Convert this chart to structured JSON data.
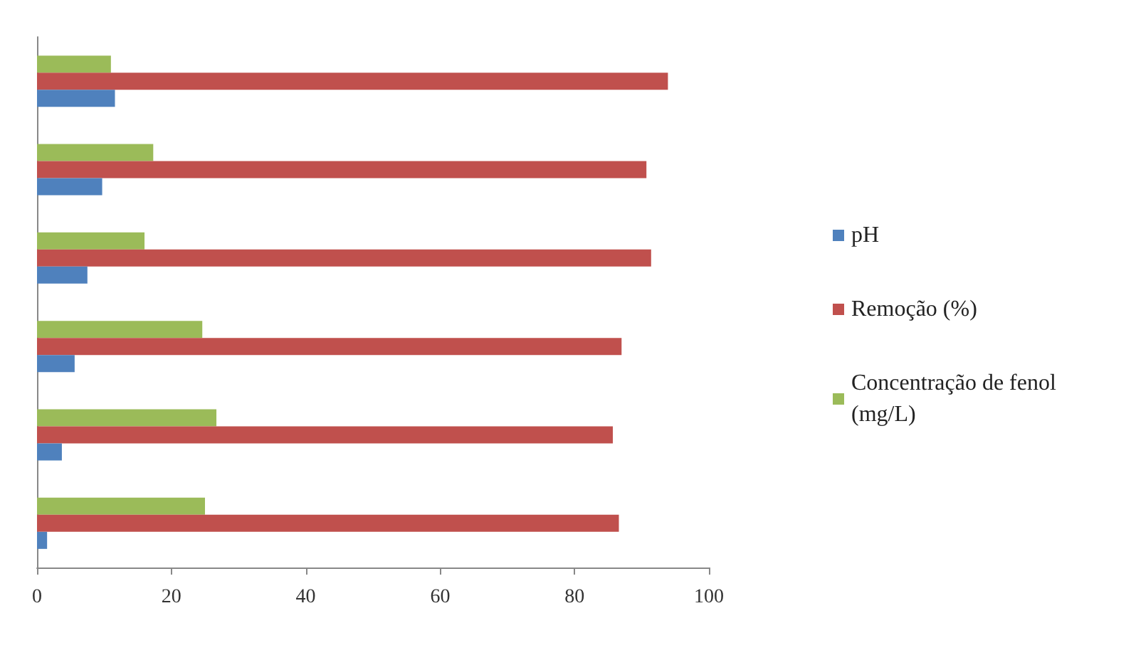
{
  "chart_data": {
    "type": "bar",
    "orientation": "horizontal",
    "categories": [
      null,
      null,
      null,
      null,
      null,
      null
    ],
    "series": [
      {
        "name": "Concentração de fenol (mg/L)",
        "color": "#9bbb59",
        "values": [
          11.0,
          17.3,
          16.0,
          24.6,
          26.7,
          25.0
        ]
      },
      {
        "name": "Remoção (%)",
        "color": "#c0504d",
        "values": [
          93.9,
          90.7,
          91.4,
          87.0,
          85.7,
          86.6
        ]
      },
      {
        "name": "pH",
        "color": "#4f81bd",
        "values": [
          11.6,
          9.7,
          7.5,
          5.6,
          3.7,
          1.5
        ]
      }
    ],
    "xlim": [
      0,
      100
    ],
    "xticks": [
      0,
      20,
      40,
      60,
      80,
      100
    ],
    "grid": false,
    "legend": "right"
  }
}
